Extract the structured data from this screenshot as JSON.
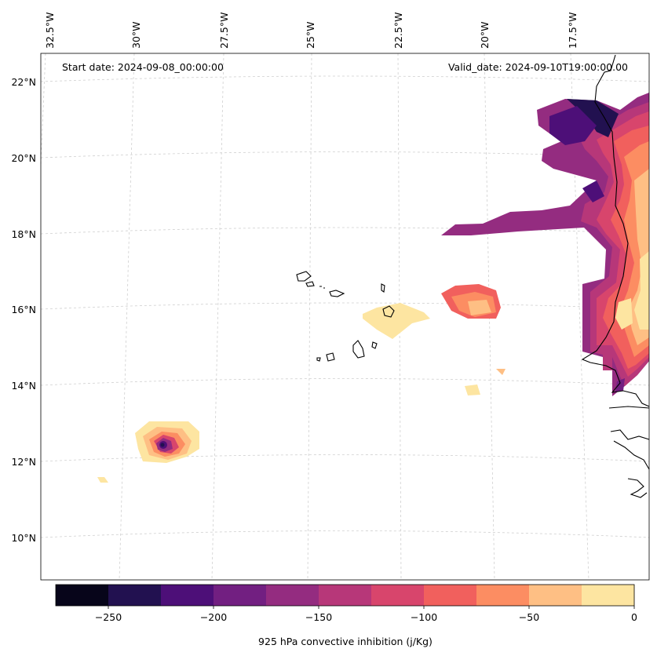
{
  "map": {
    "start_date": "Start date: 2024-09-08_00:00:00",
    "valid_date": "Valid_date: 2024-09-10T19:00:00.00",
    "lon_labels": [
      "32.5°W",
      "30°W",
      "27.5°W",
      "25°W",
      "22.5°W",
      "20°W",
      "17.5°W"
    ],
    "lat_labels": [
      "22°N",
      "20°N",
      "18°N",
      "16°N",
      "14°N",
      "12°N",
      "10°N"
    ],
    "variable": "925 hPa convective inhibition",
    "units": "j/Kg",
    "colorbar": {
      "label": "925 hPa convective inhibition (j/Kg)",
      "ticks": [
        "−250",
        "−200",
        "−150",
        "−100",
        "−50",
        "0"
      ],
      "tick_values": [
        -250,
        -200,
        -150,
        -100,
        -50,
        0
      ],
      "range": [
        -275,
        0
      ],
      "levels": [
        -275,
        -250,
        -225,
        -200,
        -175,
        -150,
        -125,
        -100,
        -75,
        -50,
        -25,
        0
      ],
      "colors": [
        "#07051a",
        "#221150",
        "#4d0f78",
        "#721f81",
        "#942c80",
        "#b73779",
        "#d8456c",
        "#f1605d",
        "#fc8d62",
        "#febf84",
        "#fde5a1"
      ]
    }
  }
}
